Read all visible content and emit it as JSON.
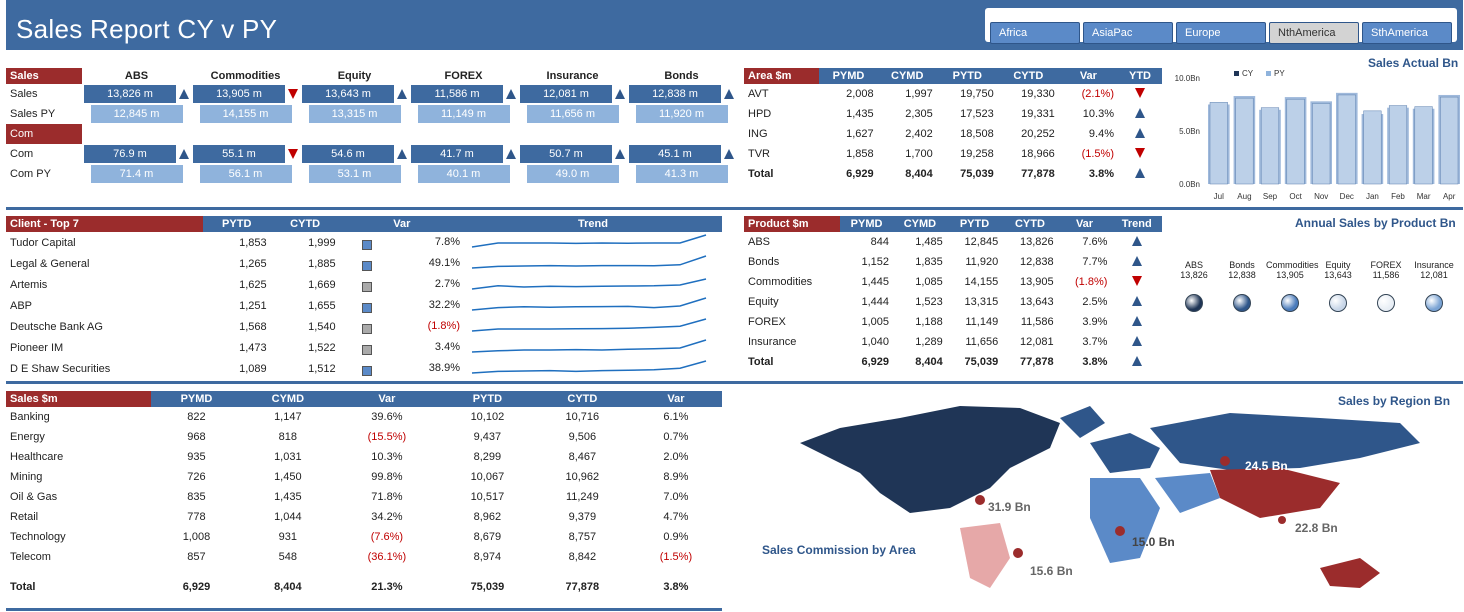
{
  "title": "Sales Report CY v PY",
  "regions": [
    {
      "label": "Africa",
      "active": false
    },
    {
      "label": "AsiaPac",
      "active": false
    },
    {
      "label": "Europe",
      "active": false
    },
    {
      "label": "NthAmerica",
      "active": true
    },
    {
      "label": "SthAmerica",
      "active": false
    }
  ],
  "summary": {
    "sales_label": "Sales",
    "com_label": "Com",
    "columns": [
      "ABS",
      "Commodities",
      "Equity",
      "FOREX",
      "Insurance",
      "Bonds"
    ],
    "rows": [
      {
        "label": "Sales",
        "type": "cy",
        "values": [
          "13,826 m",
          "13,905 m",
          "13,643 m",
          "11,586 m",
          "12,081 m",
          "12,838 m"
        ],
        "dir": [
          "up",
          "down",
          "up",
          "up",
          "up",
          "up"
        ]
      },
      {
        "label": "Sales PY",
        "type": "py",
        "values": [
          "12,845 m",
          "14,155 m",
          "13,315 m",
          "11,149 m",
          "11,656 m",
          "11,920 m"
        ]
      },
      {
        "label": "Com",
        "type": "cy",
        "values": [
          "76.9 m",
          "55.1 m",
          "54.6 m",
          "41.7 m",
          "50.7 m",
          "45.1 m"
        ],
        "dir": [
          "up",
          "down",
          "up",
          "up",
          "up",
          "up"
        ]
      },
      {
        "label": "Com PY",
        "type": "py",
        "values": [
          "71.4 m",
          "56.1 m",
          "53.1 m",
          "40.1 m",
          "49.0 m",
          "41.3 m"
        ]
      }
    ]
  },
  "area": {
    "headers": [
      "Area $m",
      "PYMD",
      "CYMD",
      "PYTD",
      "CYTD",
      "Var",
      "YTD"
    ],
    "rows": [
      [
        "AVT",
        "2,008",
        "1,997",
        "19,750",
        "19,330",
        "(2.1%)",
        "down"
      ],
      [
        "HPD",
        "1,435",
        "2,305",
        "17,523",
        "19,331",
        "10.3%",
        "up"
      ],
      [
        "ING",
        "1,627",
        "2,402",
        "18,508",
        "20,252",
        "9.4%",
        "up"
      ],
      [
        "TVR",
        "1,858",
        "1,700",
        "19,258",
        "18,966",
        "(1.5%)",
        "down"
      ],
      [
        "Total",
        "6,929",
        "8,404",
        "75,039",
        "77,878",
        "3.8%",
        "up"
      ]
    ]
  },
  "sales_actual": {
    "title": "Sales Actual Bn",
    "legend": [
      "CY",
      "PY"
    ],
    "yticks": [
      "10.0Bn",
      "5.0Bn",
      "0.0Bn"
    ],
    "months": [
      "Jul",
      "Aug",
      "Sep",
      "Oct",
      "Nov",
      "Dec",
      "Jan",
      "Feb",
      "Mar",
      "Apr"
    ]
  },
  "chart_data": {
    "type": "bar",
    "title": "Sales Actual Bn",
    "categories": [
      "Jul",
      "Aug",
      "Sep",
      "Oct",
      "Nov",
      "Dec",
      "Jan",
      "Feb",
      "Mar",
      "Apr"
    ],
    "series": [
      {
        "name": "CY",
        "values": [
          7.7,
          8.1,
          7.2,
          8.0,
          7.6,
          8.4,
          6.9,
          7.4,
          7.3,
          8.2
        ]
      },
      {
        "name": "PY",
        "values": [
          7.5,
          8.3,
          7.0,
          8.2,
          7.8,
          8.6,
          6.6,
          7.2,
          7.1,
          8.4
        ]
      }
    ],
    "ylim": [
      0,
      10
    ]
  },
  "clients": {
    "headers": [
      "Client - Top 7",
      "PYTD",
      "CYTD",
      "Var",
      "Trend"
    ],
    "rows": [
      [
        "Tudor Capital",
        "1,853",
        "1,999",
        "blue",
        "7.8%"
      ],
      [
        "Legal & General",
        "1,265",
        "1,885",
        "blue",
        "49.1%"
      ],
      [
        "Artemis",
        "1,625",
        "1,669",
        "grey",
        "2.7%"
      ],
      [
        "ABP",
        "1,251",
        "1,655",
        "blue",
        "32.2%"
      ],
      [
        "Deutsche Bank AG",
        "1,568",
        "1,540",
        "grey",
        "(1.8%)"
      ],
      [
        "Pioneer IM",
        "1,473",
        "1,522",
        "grey",
        "3.4%"
      ],
      [
        "D E Shaw Securities",
        "1,089",
        "1,512",
        "blue",
        "38.9%"
      ]
    ]
  },
  "product": {
    "headers": [
      "Product $m",
      "PYMD",
      "CYMD",
      "PYTD",
      "CYTD",
      "Var",
      "Trend"
    ],
    "rows": [
      [
        "ABS",
        "844",
        "1,485",
        "12,845",
        "13,826",
        "7.6%",
        "up"
      ],
      [
        "Bonds",
        "1,152",
        "1,835",
        "11,920",
        "12,838",
        "7.7%",
        "up"
      ],
      [
        "Commodities",
        "1,445",
        "1,085",
        "14,155",
        "13,905",
        "(1.8%)",
        "down"
      ],
      [
        "Equity",
        "1,444",
        "1,523",
        "13,315",
        "13,643",
        "2.5%",
        "up"
      ],
      [
        "FOREX",
        "1,005",
        "1,188",
        "11,149",
        "11,586",
        "3.9%",
        "up"
      ],
      [
        "Insurance",
        "1,040",
        "1,289",
        "11,656",
        "12,081",
        "3.7%",
        "up"
      ],
      [
        "Total",
        "6,929",
        "8,404",
        "75,039",
        "77,878",
        "3.8%",
        "up"
      ]
    ]
  },
  "annual": {
    "title": "Annual Sales by Product Bn",
    "items": [
      {
        "label": "ABS",
        "value": "13,826",
        "color": "#1f3556"
      },
      {
        "label": "Bonds",
        "value": "12,838",
        "color": "#2f568a"
      },
      {
        "label": "Commodities",
        "value": "13,905",
        "color": "#4a7bbb"
      },
      {
        "label": "Equity",
        "value": "13,643",
        "color": "#c8d6e8"
      },
      {
        "label": "FOREX",
        "value": "11,586",
        "color": "#e8eef5"
      },
      {
        "label": "Insurance",
        "value": "12,081",
        "color": "#7aa3d4"
      }
    ]
  },
  "sectors": {
    "headers": [
      "Sales $m",
      "PYMD",
      "CYMD",
      "Var",
      "PYTD",
      "CYTD",
      "Var"
    ],
    "rows": [
      [
        "Banking",
        "822",
        "1,147",
        "39.6%",
        "10,102",
        "10,716",
        "6.1%"
      ],
      [
        "Energy",
        "968",
        "818",
        "(15.5%)",
        "9,437",
        "9,506",
        "0.7%"
      ],
      [
        "Healthcare",
        "935",
        "1,031",
        "10.3%",
        "8,299",
        "8,467",
        "2.0%"
      ],
      [
        "Mining",
        "726",
        "1,450",
        "99.8%",
        "10,067",
        "10,962",
        "8.9%"
      ],
      [
        "Oil & Gas",
        "835",
        "1,435",
        "71.8%",
        "10,517",
        "11,249",
        "7.0%"
      ],
      [
        "Retail",
        "778",
        "1,044",
        "34.2%",
        "8,962",
        "9,379",
        "4.7%"
      ],
      [
        "Technology",
        "1,008",
        "931",
        "(7.6%)",
        "8,679",
        "8,757",
        "0.9%"
      ],
      [
        "Telecom",
        "857",
        "548",
        "(36.1%)",
        "8,974",
        "8,842",
        "(1.5%)"
      ]
    ],
    "total": [
      "Total",
      "6,929",
      "8,404",
      "21.3%",
      "75,039",
      "77,878",
      "3.8%"
    ]
  },
  "map": {
    "title": "Sales by Region Bn",
    "subtitle": "Sales Commission by Area",
    "labels": [
      "24.5 Bn",
      "31.9 Bn",
      "15.0 Bn",
      "22.8 Bn",
      "15.6 Bn"
    ]
  }
}
